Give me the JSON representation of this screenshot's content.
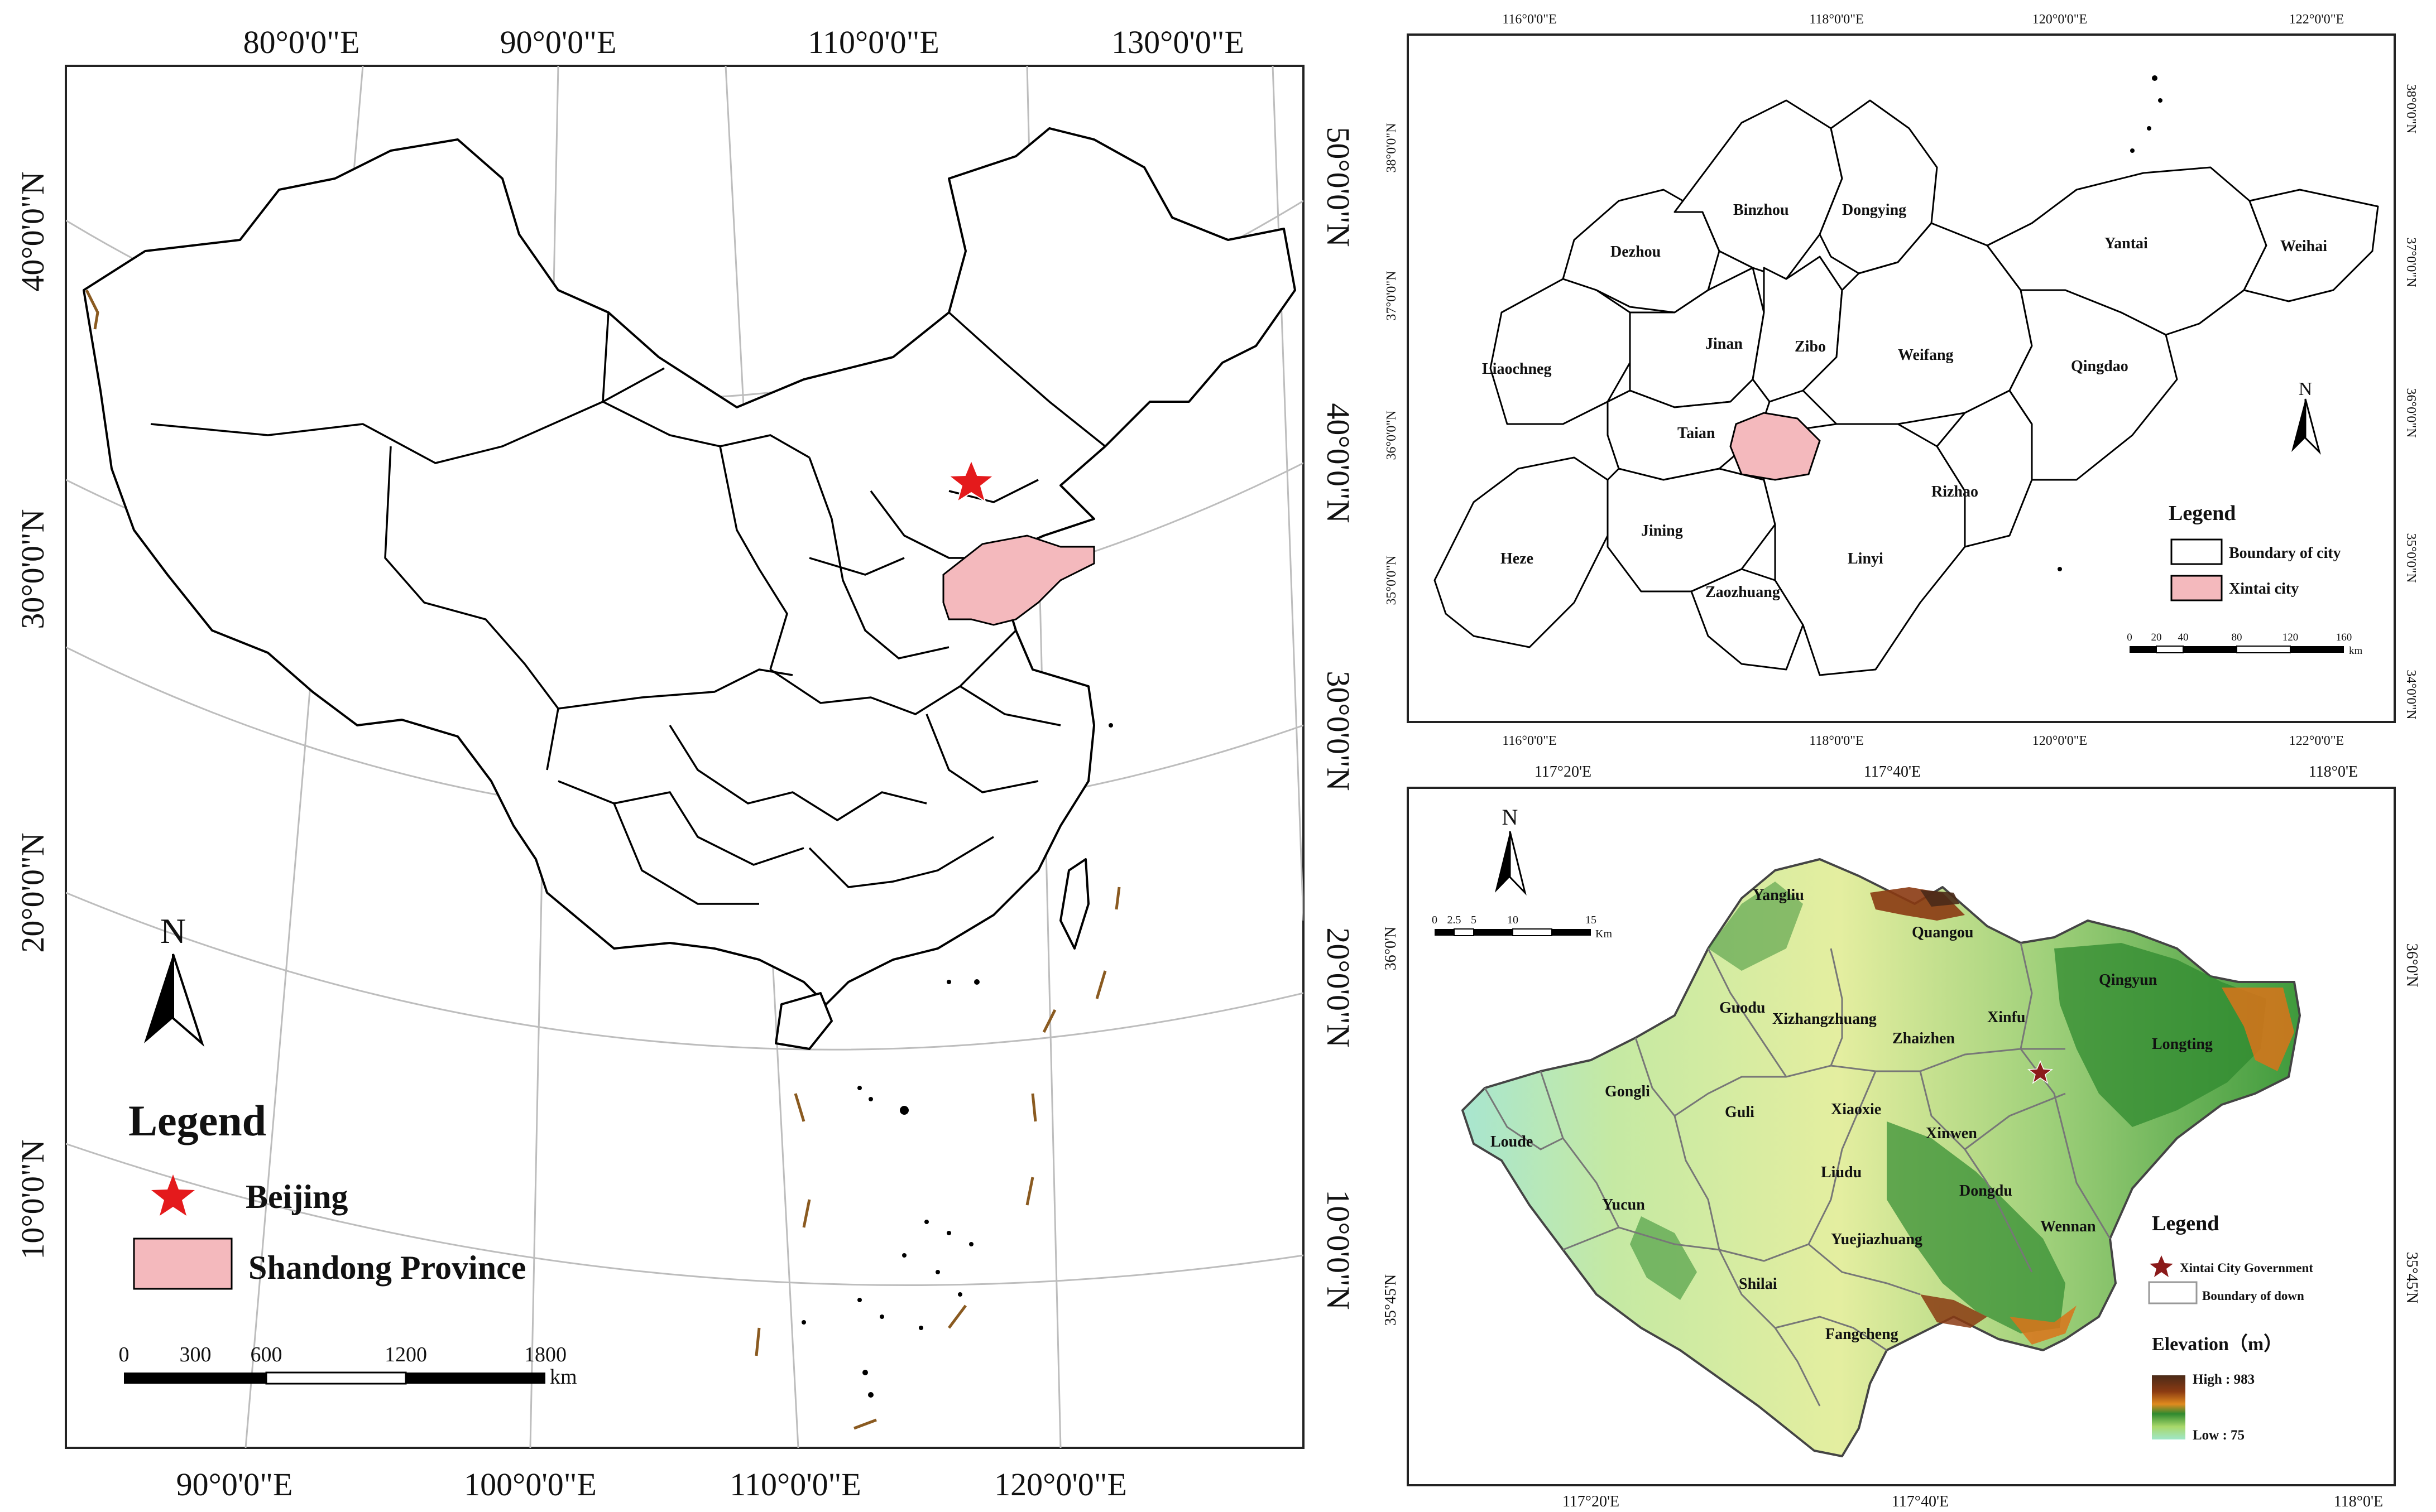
{
  "china_map": {
    "top_lon": [
      "80°0'0\"E",
      "90°0'0\"E",
      "110°0'0\"E",
      "130°0'0\"E"
    ],
    "bottom_lon": [
      "90°0'0\"E",
      "100°0'0\"E",
      "110°0'0\"E",
      "120°0'0\"E"
    ],
    "left_lat": [
      "40°0'0\"N",
      "30°0'0\"N",
      "20°0'0\"N",
      "10°0'0\"N"
    ],
    "right_lat": [
      "50°0'0\"N",
      "40°0'0\"N",
      "30°0'0\"N",
      "20°0'0\"N",
      "10°0'0\"N"
    ],
    "north": "N",
    "legend": {
      "title": "Legend",
      "items": [
        {
          "label": "Beijing",
          "symbol": "red-star",
          "color": "#e41a1c"
        },
        {
          "label": "Shandong Province",
          "symbol": "pink-rect",
          "color": "#f4b9bd"
        }
      ]
    },
    "scale": {
      "ticks": [
        "0",
        "300",
        "600",
        "1200",
        "1800"
      ],
      "unit": "km"
    }
  },
  "shandong_map": {
    "top_lon": [
      "116°0'0\"E",
      "118°0'0\"E",
      "120°0'0\"E",
      "122°0'0\"E"
    ],
    "bottom_lon": [
      "116°0'0\"E",
      "118°0'0\"E",
      "120°0'0\"E",
      "122°0'0\"E"
    ],
    "left_lat": [
      "38°0'0\"N",
      "37°0'0\"N",
      "36°0'0\"N",
      "35°0'0\"N"
    ],
    "right_lat": [
      "38°0'0\"N",
      "37°0'0\"N",
      "36°0'0\"N",
      "35°0'0\"N",
      "34°0'0\"N"
    ],
    "cities": [
      "Binzhou",
      "Dongying",
      "Dezhou",
      "Yantai",
      "Weihai",
      "Jinan",
      "Zibo",
      "Weifang",
      "Qingdao",
      "Liaochneg",
      "Taian",
      "Rizhao",
      "Jining",
      "Heze",
      "Linyi",
      "Zaozhuang"
    ],
    "north": "N",
    "legend": {
      "title": "Legend",
      "items": [
        {
          "label": "Boundary of city",
          "symbol": "white-rect"
        },
        {
          "label": "Xintai city",
          "symbol": "pink-rect",
          "color": "#f4b9bd"
        }
      ]
    },
    "scale": {
      "ticks": [
        "0",
        "20",
        "40",
        "80",
        "120",
        "160"
      ],
      "unit": "km"
    }
  },
  "xintai_map": {
    "top_lon": [
      "117°20'E",
      "117°40'E",
      "118°0'E"
    ],
    "bottom_lon": [
      "117°20'E",
      "117°40'E",
      "118°0'E"
    ],
    "left_lat": [
      "36°0'N",
      "35°45'N"
    ],
    "right_lat": [
      "36°0'N",
      "35°45'N"
    ],
    "towns": [
      "Yangliu",
      "Quangou",
      "Qingyun",
      "Guodu",
      "Xizhangzhuang",
      "Zhaizhen",
      "Xinfu",
      "Longting",
      "Gongli",
      "Guli",
      "Xiaoxie",
      "Xinwen",
      "Loude",
      "Liudu",
      "Dongdu",
      "Yucun",
      "Wennan",
      "Yuejiazhuang",
      "Shilai",
      "Fangcheng"
    ],
    "north": "N",
    "scale": {
      "ticks": [
        "0",
        "2.5",
        "5",
        "10",
        "15"
      ],
      "unit": "Km"
    },
    "legend": {
      "title": "Legend",
      "items": [
        {
          "label": "Xintai City Government",
          "symbol": "red-star",
          "color": "#8b1a1a"
        },
        {
          "label": "Boundary of down",
          "symbol": "white-rect"
        }
      ],
      "elevation_title": "Elevation（m）",
      "high": "High : 983",
      "low": "Low : 75",
      "ramp_colors": [
        "#4a2a18",
        "#8a3a12",
        "#d9731a",
        "#2f8a2f",
        "#a9d86a",
        "#9fe6c8"
      ]
    }
  }
}
